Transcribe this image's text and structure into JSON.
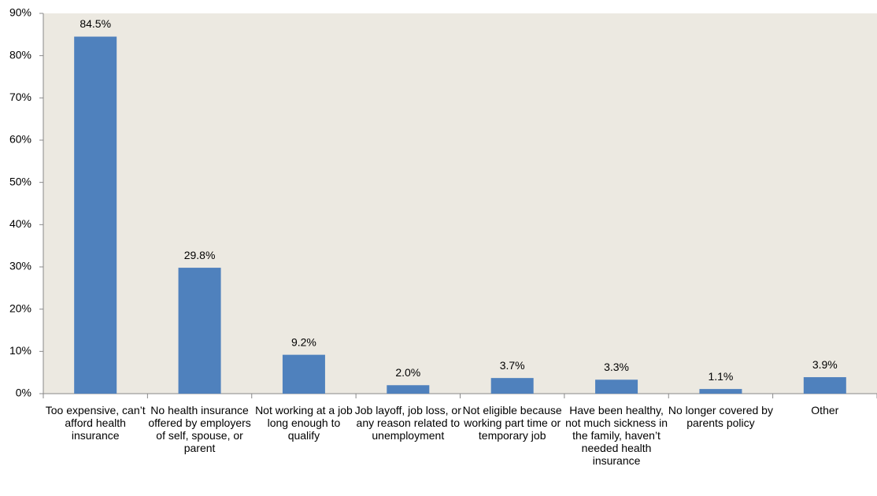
{
  "chart_data": {
    "type": "bar",
    "categories": [
      "Too expensive, can’t afford health insurance",
      "No health insurance offered by employers of self, spouse, or parent",
      "Not working at a job long enough to qualify",
      "Job layoff, job loss, or any reason related to unemployment",
      "Not eligible because working part time or temporary job",
      "Have been healthy, not much sickness in the family, haven’t needed health insurance",
      "No longer covered by parents policy",
      "Other"
    ],
    "values": [
      84.5,
      29.8,
      9.2,
      2.0,
      3.7,
      3.3,
      1.1,
      3.9
    ],
    "value_labels": [
      "84.5%",
      "29.8%",
      "9.2%",
      "2.0%",
      "3.7%",
      "3.3%",
      "1.1%",
      "3.9%"
    ],
    "color": "#4f81bd",
    "ylim": [
      0,
      90
    ],
    "yticks": [
      {
        "value": 0,
        "label": "0%"
      },
      {
        "value": 10,
        "label": "10%"
      },
      {
        "value": 20,
        "label": "20%"
      },
      {
        "value": 30,
        "label": "30%"
      },
      {
        "value": 40,
        "label": "40%"
      },
      {
        "value": 50,
        "label": "50%"
      },
      {
        "value": 60,
        "label": "60%"
      },
      {
        "value": 70,
        "label": "70%"
      },
      {
        "value": 80,
        "label": "80%"
      },
      {
        "value": 90,
        "label": "90%"
      }
    ],
    "background": "#ece9e1"
  }
}
